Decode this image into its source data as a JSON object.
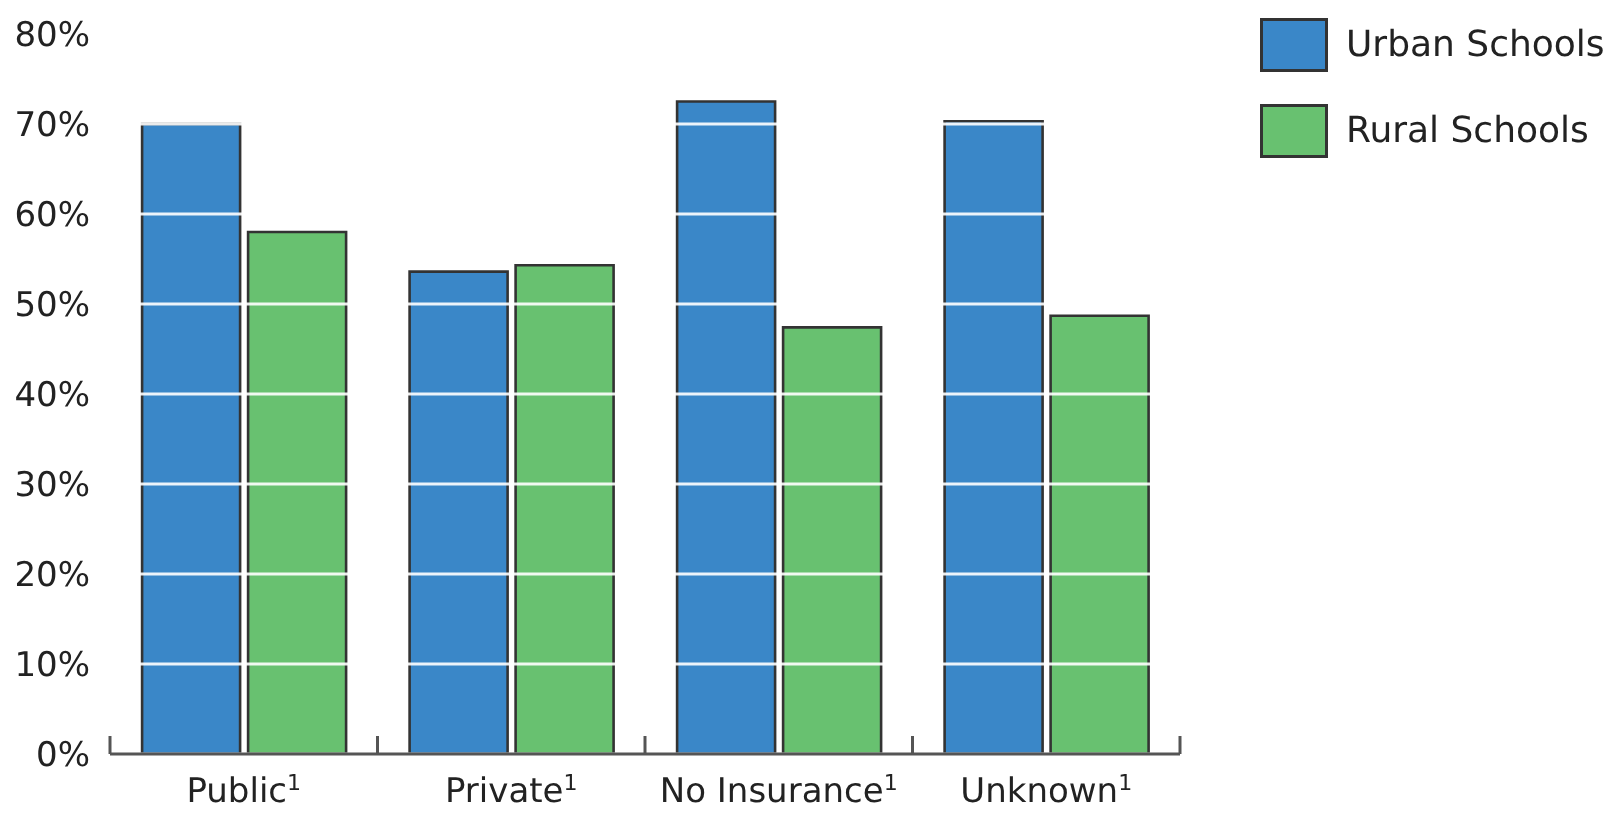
{
  "chart_data": {
    "type": "bar",
    "categories": [
      "Public$^{1}$",
      "Private$^{1}$",
      "No Insurance$^{1}$",
      "Unknown$^{1}$"
    ],
    "series": [
      {
        "name": "Urban Schools",
        "color": "#3a87c8",
        "values": [
          70,
          53.6,
          72.5,
          70.3
        ]
      },
      {
        "name": "Rural Schools",
        "color": "#68c170",
        "values": [
          58,
          54.3,
          47.4,
          48.7
        ]
      }
    ],
    "ylim": [
      0,
      80
    ],
    "yticks": [
      {
        "value": 0,
        "label": "0%"
      },
      {
        "value": 10,
        "label": "10%"
      },
      {
        "value": 20,
        "label": "20%"
      },
      {
        "value": 30,
        "label": "30%"
      },
      {
        "value": 40,
        "label": "40%"
      },
      {
        "value": 50,
        "label": "50%"
      },
      {
        "value": 60,
        "label": "60%"
      },
      {
        "value": 70,
        "label": "70%"
      },
      {
        "value": 80,
        "label": "80%"
      }
    ],
    "grid": "y",
    "legend": "top right"
  }
}
